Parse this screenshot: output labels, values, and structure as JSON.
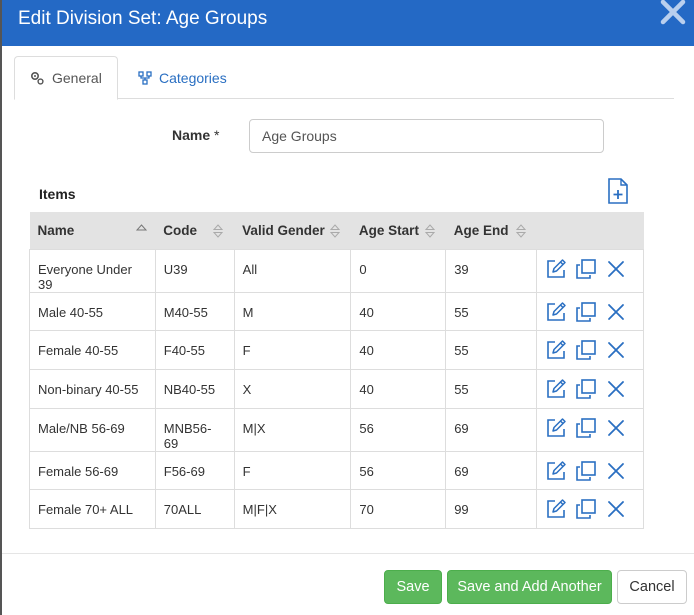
{
  "dialog": {
    "title": "Edit Division Set: Age Groups"
  },
  "tabs": [
    {
      "label": "General",
      "icon": "gears-icon",
      "active": true
    },
    {
      "label": "Categories",
      "icon": "sitemap-icon",
      "active": false
    }
  ],
  "form": {
    "name_label": "Name",
    "required_mark": "*",
    "name_value": "Age Groups"
  },
  "items": {
    "title": "Items",
    "columns": [
      "Name",
      "Code",
      "Valid Gender",
      "Age Start",
      "Age End"
    ],
    "rows": [
      {
        "name": "Everyone Under 39",
        "code": "U39",
        "gender": "All",
        "age_start": "0",
        "age_end": "39"
      },
      {
        "name": "Male 40-55",
        "code": "M40-55",
        "gender": "M",
        "age_start": "40",
        "age_end": "55"
      },
      {
        "name": "Female 40-55",
        "code": "F40-55",
        "gender": "F",
        "age_start": "40",
        "age_end": "55"
      },
      {
        "name": "Non-binary 40-55",
        "code": "NB40-55",
        "gender": "X",
        "age_start": "40",
        "age_end": "55"
      },
      {
        "name": "Male/NB 56-69",
        "code": "MNB56-69",
        "gender": "M|X",
        "age_start": "56",
        "age_end": "69"
      },
      {
        "name": "Female 56-69",
        "code": "F56-69",
        "gender": "F",
        "age_start": "56",
        "age_end": "69"
      },
      {
        "name": "Female 70+ ALL",
        "code": "70ALL",
        "gender": "M|F|X",
        "age_start": "70",
        "age_end": "99"
      }
    ]
  },
  "footer": {
    "save_label": "Save",
    "save_add_label": "Save and Add Another",
    "cancel_label": "Cancel"
  },
  "colors": {
    "header": "#2469c5",
    "accent": "#2a6fc2",
    "success": "#5cb85c"
  }
}
